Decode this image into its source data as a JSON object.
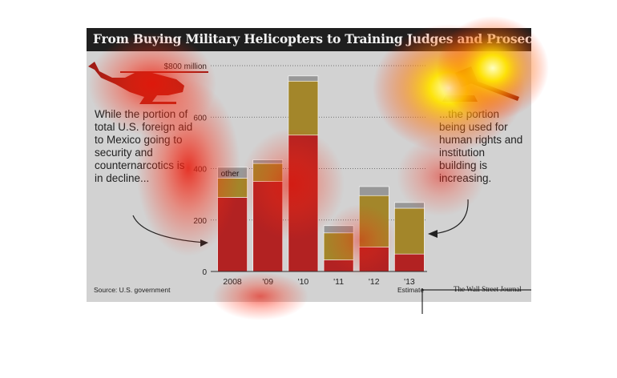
{
  "title": "From Buying Military Helicopters to Training Judges and Prosecutors",
  "annotation_left": "While the portion of total U.S. foreign aid to Mexico going to security and counternarcotics is in decline...",
  "annotation_right": "...the portion being used for human rights and institution building is increasing.",
  "source": "Source: U.S. government",
  "estimate_note": "Estimate",
  "credit": "The Wall Street Journal",
  "icons": [
    "helicopter-icon",
    "gavel-icon"
  ],
  "colors": {
    "security": "#b22222",
    "institution": "#a3862a",
    "other": "#989898",
    "title_bg": "#1f1f1f",
    "panel_bg": "#d2d2d2"
  },
  "chart_data": {
    "type": "bar",
    "stacked": true,
    "categories": [
      "2008",
      "'09",
      "'10",
      "'11",
      "'12",
      "'13"
    ],
    "series": [
      {
        "values": [
          288,
          350,
          530,
          45,
          95,
          68
        ]
      },
      {
        "values": [
          75,
          70,
          210,
          105,
          200,
          178
        ]
      },
      {
        "name": "other",
        "values": [
          42,
          14,
          20,
          28,
          35,
          22
        ]
      }
    ],
    "y_ticks": [
      0,
      200,
      400,
      600,
      800
    ],
    "y_tick_labels": [
      "0",
      "200",
      "400",
      "600",
      "$800 million"
    ],
    "ylim": [
      0,
      800
    ],
    "grid": true,
    "legend": "inline label \"other\" on first bar"
  }
}
